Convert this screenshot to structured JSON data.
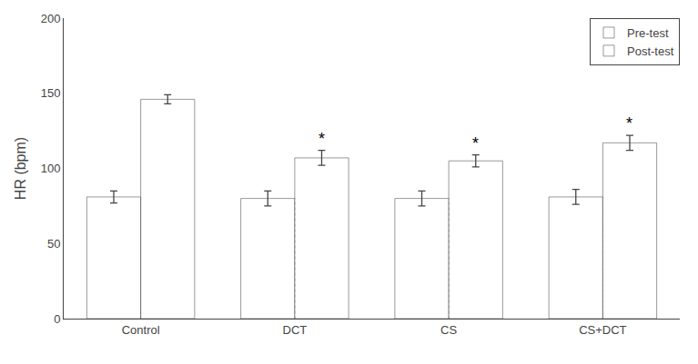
{
  "chart_data": {
    "type": "bar",
    "categories": [
      "Control",
      "DCT",
      "CS",
      "CS+DCT"
    ],
    "ylabel": "HR (bpm)",
    "series": [
      {
        "name": "Pre-test",
        "color": "#111111",
        "values": [
          81,
          80,
          80,
          81
        ],
        "errors": [
          4,
          5,
          5,
          5
        ]
      },
      {
        "name": "Post-test",
        "color": "#a0a0a0",
        "values": [
          146,
          107,
          105,
          117
        ],
        "errors": [
          3,
          5,
          4,
          5
        ]
      }
    ],
    "ylim": [
      0,
      200
    ],
    "yticks": [
      0,
      50,
      100,
      150,
      200
    ],
    "grid": false,
    "legend": "upper right",
    "annotations": [
      {
        "category": "DCT",
        "series": "Post-test",
        "text": "*"
      },
      {
        "category": "CS",
        "series": "Post-test",
        "text": "*"
      },
      {
        "category": "CS+DCT",
        "series": "Post-test",
        "text": "*"
      }
    ]
  }
}
